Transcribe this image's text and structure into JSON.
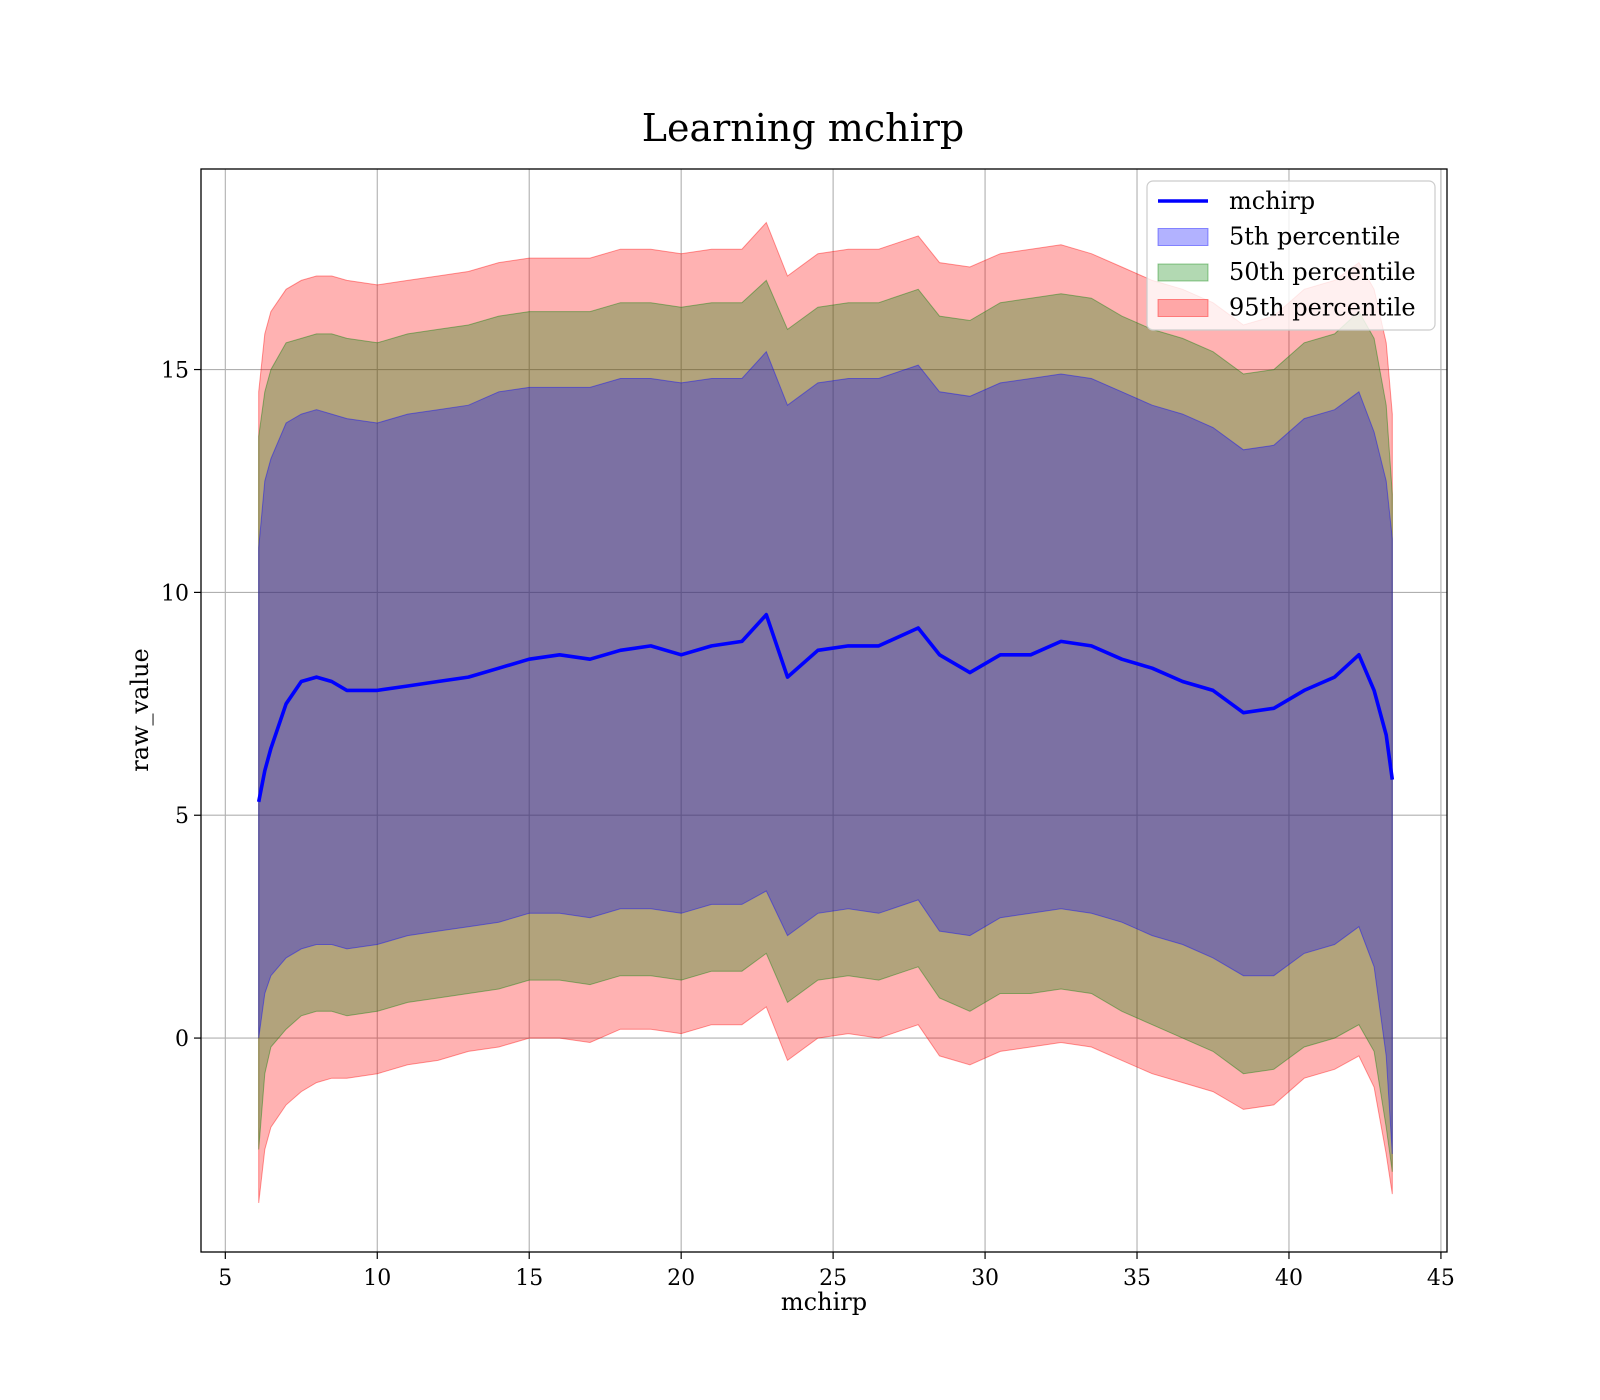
{
  "chart_data": {
    "type": "area",
    "title": "Learning mchirp",
    "xlabel": "mchirp",
    "ylabel": "raw_value",
    "xlim": [
      4.2,
      45.2
    ],
    "ylim": [
      -4.8,
      19.5
    ],
    "xticks": [
      5,
      10,
      15,
      20,
      25,
      30,
      35,
      40,
      45
    ],
    "yticks": [
      0,
      5,
      10,
      15
    ],
    "grid": true,
    "legend_position": "top-right",
    "x": [
      6.1,
      6.3,
      6.5,
      7.0,
      7.5,
      8.0,
      8.5,
      9.0,
      10.0,
      11.0,
      12.0,
      13.0,
      14.0,
      15.0,
      16.0,
      17.0,
      18.0,
      19.0,
      20.0,
      21.0,
      22.0,
      22.8,
      23.5,
      24.5,
      25.5,
      26.5,
      27.8,
      28.5,
      29.5,
      30.5,
      31.5,
      32.5,
      33.5,
      34.5,
      35.5,
      36.5,
      37.5,
      38.5,
      39.5,
      40.5,
      41.5,
      42.3,
      42.8,
      43.2,
      43.4
    ],
    "series": [
      {
        "name": "mchirp",
        "kind": "line",
        "color": "#0000ff",
        "values": [
          5.3,
          6.0,
          6.5,
          7.5,
          8.0,
          8.1,
          8.0,
          7.8,
          7.8,
          7.9,
          8.0,
          8.1,
          8.3,
          8.5,
          8.6,
          8.5,
          8.7,
          8.8,
          8.6,
          8.8,
          8.9,
          9.5,
          8.1,
          8.7,
          8.8,
          8.8,
          9.2,
          8.6,
          8.2,
          8.6,
          8.6,
          8.9,
          8.8,
          8.5,
          8.3,
          8.0,
          7.8,
          7.3,
          7.4,
          7.8,
          8.1,
          8.6,
          7.8,
          6.8,
          5.8
        ]
      },
      {
        "name": "5th percentile",
        "kind": "band",
        "color": "#0000ff",
        "lower": [
          0.0,
          1.0,
          1.4,
          1.8,
          2.0,
          2.1,
          2.1,
          2.0,
          2.1,
          2.3,
          2.4,
          2.5,
          2.6,
          2.8,
          2.8,
          2.7,
          2.9,
          2.9,
          2.8,
          3.0,
          3.0,
          3.3,
          2.3,
          2.8,
          2.9,
          2.8,
          3.1,
          2.4,
          2.3,
          2.7,
          2.8,
          2.9,
          2.8,
          2.6,
          2.3,
          2.1,
          1.8,
          1.4,
          1.4,
          1.9,
          2.1,
          2.5,
          1.6,
          -0.4,
          -2.6
        ],
        "upper": [
          11.0,
          12.5,
          13.0,
          13.8,
          14.0,
          14.1,
          14.0,
          13.9,
          13.8,
          14.0,
          14.1,
          14.2,
          14.5,
          14.6,
          14.6,
          14.6,
          14.8,
          14.8,
          14.7,
          14.8,
          14.8,
          15.4,
          14.2,
          14.7,
          14.8,
          14.8,
          15.1,
          14.5,
          14.4,
          14.7,
          14.8,
          14.9,
          14.8,
          14.5,
          14.2,
          14.0,
          13.7,
          13.2,
          13.3,
          13.9,
          14.1,
          14.5,
          13.6,
          12.5,
          11.2
        ]
      },
      {
        "name": "50th percentile",
        "kind": "band",
        "color": "#008000",
        "lower": [
          -2.5,
          -0.8,
          -0.2,
          0.2,
          0.5,
          0.6,
          0.6,
          0.5,
          0.6,
          0.8,
          0.9,
          1.0,
          1.1,
          1.3,
          1.3,
          1.2,
          1.4,
          1.4,
          1.3,
          1.5,
          1.5,
          1.9,
          0.8,
          1.3,
          1.4,
          1.3,
          1.6,
          0.9,
          0.6,
          1.0,
          1.0,
          1.1,
          1.0,
          0.6,
          0.3,
          0.0,
          -0.3,
          -0.8,
          -0.7,
          -0.2,
          0.0,
          0.3,
          -0.3,
          -2.0,
          -3.0
        ],
        "upper": [
          13.5,
          14.5,
          15.0,
          15.6,
          15.7,
          15.8,
          15.8,
          15.7,
          15.6,
          15.8,
          15.9,
          16.0,
          16.2,
          16.3,
          16.3,
          16.3,
          16.5,
          16.5,
          16.4,
          16.5,
          16.5,
          17.0,
          15.9,
          16.4,
          16.5,
          16.5,
          16.8,
          16.2,
          16.1,
          16.5,
          16.6,
          16.7,
          16.6,
          16.2,
          15.9,
          15.7,
          15.4,
          14.9,
          15.0,
          15.6,
          15.8,
          16.3,
          15.7,
          14.2,
          12.2
        ]
      },
      {
        "name": "95th percentile",
        "kind": "band",
        "color": "#ff0000",
        "lower": [
          -3.7,
          -2.5,
          -2.0,
          -1.5,
          -1.2,
          -1.0,
          -0.9,
          -0.9,
          -0.8,
          -0.6,
          -0.5,
          -0.3,
          -0.2,
          0.0,
          0.0,
          -0.1,
          0.2,
          0.2,
          0.1,
          0.3,
          0.3,
          0.7,
          -0.5,
          0.0,
          0.1,
          0.0,
          0.3,
          -0.4,
          -0.6,
          -0.3,
          -0.2,
          -0.1,
          -0.2,
          -0.5,
          -0.8,
          -1.0,
          -1.2,
          -1.6,
          -1.5,
          -0.9,
          -0.7,
          -0.4,
          -1.1,
          -2.6,
          -3.5
        ],
        "upper": [
          14.5,
          15.8,
          16.3,
          16.8,
          17.0,
          17.1,
          17.1,
          17.0,
          16.9,
          17.0,
          17.1,
          17.2,
          17.4,
          17.5,
          17.5,
          17.5,
          17.7,
          17.7,
          17.6,
          17.7,
          17.7,
          18.3,
          17.1,
          17.6,
          17.7,
          17.7,
          18.0,
          17.4,
          17.3,
          17.6,
          17.7,
          17.8,
          17.6,
          17.3,
          17.0,
          16.8,
          16.5,
          16.0,
          16.2,
          16.8,
          17.0,
          17.4,
          16.8,
          15.6,
          14.0
        ]
      }
    ]
  }
}
